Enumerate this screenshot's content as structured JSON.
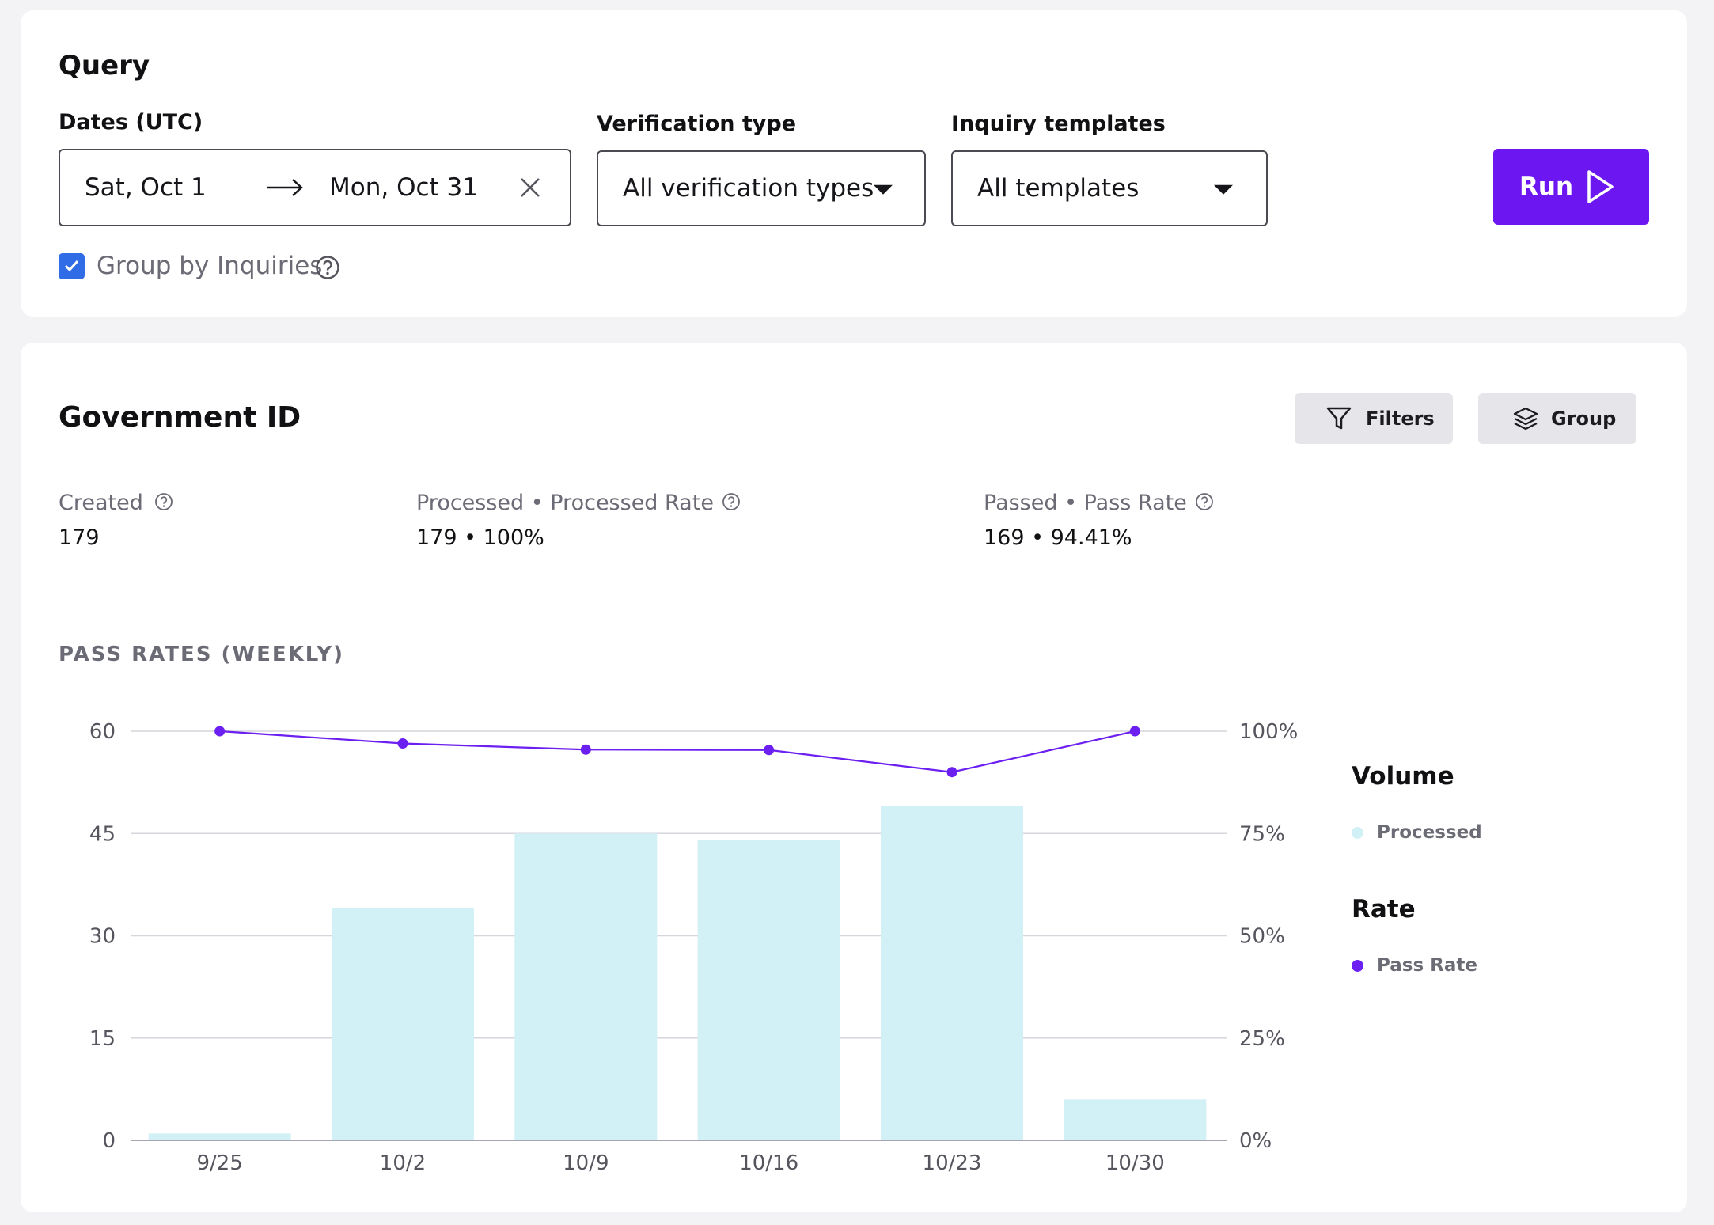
{
  "query": {
    "title": "Query",
    "dates_label": "Dates (UTC)",
    "date_start": "Sat, Oct 1",
    "date_end": "Mon, Oct 31",
    "verification_label": "Verification type",
    "verification_value": "All verification types",
    "templates_label": "Inquiry templates",
    "templates_value": "All templates",
    "run_label": "Run",
    "group_by_label": "Group by Inquiries",
    "group_by_checked": true
  },
  "government": {
    "title": "Government ID",
    "filters_label": "Filters",
    "group_label": "Group",
    "metrics": [
      {
        "label": "Created",
        "value": "179"
      },
      {
        "label": "Processed • Processed Rate",
        "value": "179 • 100%"
      },
      {
        "label": "Passed • Pass Rate",
        "value": "169 • 94.41%"
      }
    ],
    "chart_caption": "PASS RATES (WEEKLY)",
    "legend": {
      "volume_heading": "Volume",
      "volume_item": "Processed",
      "rate_heading": "Rate",
      "rate_item": "Pass Rate"
    }
  },
  "colors": {
    "accent": "#6c17f2",
    "bar": "#d2f1f6",
    "line": "#6b1ff0",
    "checkbox": "#2f6ce5"
  },
  "chart_data": {
    "type": "bar",
    "categories": [
      "9/25",
      "10/2",
      "10/9",
      "10/16",
      "10/23",
      "10/30"
    ],
    "series": [
      {
        "name": "Processed",
        "type": "bar",
        "axis": "left",
        "values": [
          1,
          34,
          45,
          44,
          49,
          6
        ]
      },
      {
        "name": "Pass Rate",
        "type": "line",
        "axis": "right",
        "values": [
          100,
          97,
          95.5,
          95.4,
          90,
          100
        ]
      }
    ],
    "y_left": {
      "ticks": [
        "0",
        "15",
        "30",
        "45",
        "60"
      ],
      "range": [
        0,
        60
      ]
    },
    "y_right": {
      "ticks": [
        "0%",
        "25%",
        "50%",
        "75%",
        "100%"
      ],
      "range": [
        0,
        100
      ]
    },
    "grid": true,
    "legend_position": "right"
  }
}
